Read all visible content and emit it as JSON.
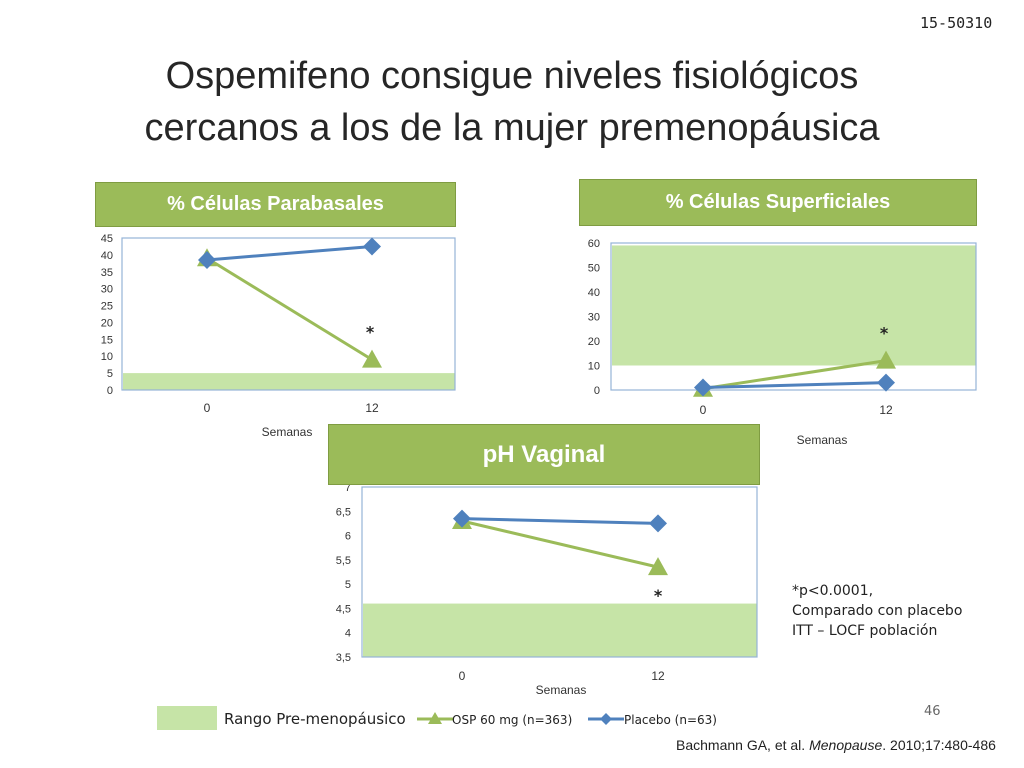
{
  "slide_code": "15-50310",
  "title_line1": "Ospemifeno consigue niveles fisiológicos",
  "title_line2": "cercanos a los de la mujer premenopáusica",
  "note_line1": "*p<0.0001,",
  "note_line2": "Comparado con placebo",
  "note_line3": "ITT – LOCF población",
  "legend": {
    "range_label": "Rango Pre-menopáusico",
    "osp_label": "OSP 60 mg (n=363)",
    "placebo_label": "Placebo (n=63)"
  },
  "page_number": "46",
  "citation": {
    "authors": "Bachmann GA, et al. ",
    "journal": "Menopause",
    "rest": ". 2010;17:480-486"
  },
  "colors": {
    "header_green": "#9bbb59",
    "range_fill": "#c6e4a7",
    "osp_green": "#9bbb59",
    "placebo_blue": "#4f81bd",
    "frame_blue": "#95b3d7"
  },
  "chart_data": [
    {
      "type": "line",
      "title": "% Células Parabasales",
      "xlabel": "Semanas",
      "categories": [
        "0",
        "12"
      ],
      "ylim": [
        0,
        45
      ],
      "yticks": [
        "0",
        "5",
        "10",
        "15",
        "20",
        "25",
        "30",
        "35",
        "40",
        "45"
      ],
      "range_band": [
        0,
        5
      ],
      "annotation": "*",
      "series": [
        {
          "name": "OSP 60 mg (n=363)",
          "values": [
            39,
            9
          ]
        },
        {
          "name": "Placebo (n=63)",
          "values": [
            38.5,
            42.5
          ]
        }
      ]
    },
    {
      "type": "line",
      "title": "% Células Superficiales",
      "xlabel": "Semanas",
      "categories": [
        "0",
        "12"
      ],
      "ylim": [
        0,
        60
      ],
      "yticks": [
        "0",
        "10",
        "20",
        "30",
        "40",
        "50",
        "60"
      ],
      "range_band": [
        10,
        59
      ],
      "annotation": "*",
      "series": [
        {
          "name": "OSP 60 mg (n=363)",
          "values": [
            0.5,
            12
          ]
        },
        {
          "name": "Placebo (n=63)",
          "values": [
            1,
            3
          ]
        }
      ]
    },
    {
      "type": "line",
      "title": "pH Vaginal",
      "xlabel": "Semanas",
      "categories": [
        "0",
        "12"
      ],
      "ylim": [
        3.5,
        7
      ],
      "yticks": [
        "3,5",
        "4",
        "4,5",
        "5",
        "5,5",
        "6",
        "6,5",
        "7"
      ],
      "range_band": [
        3.5,
        4.6
      ],
      "annotation": "*",
      "series": [
        {
          "name": "OSP 60 mg (n=363)",
          "values": [
            6.3,
            5.35
          ]
        },
        {
          "name": "Placebo (n=63)",
          "values": [
            6.35,
            6.25
          ]
        }
      ]
    }
  ]
}
